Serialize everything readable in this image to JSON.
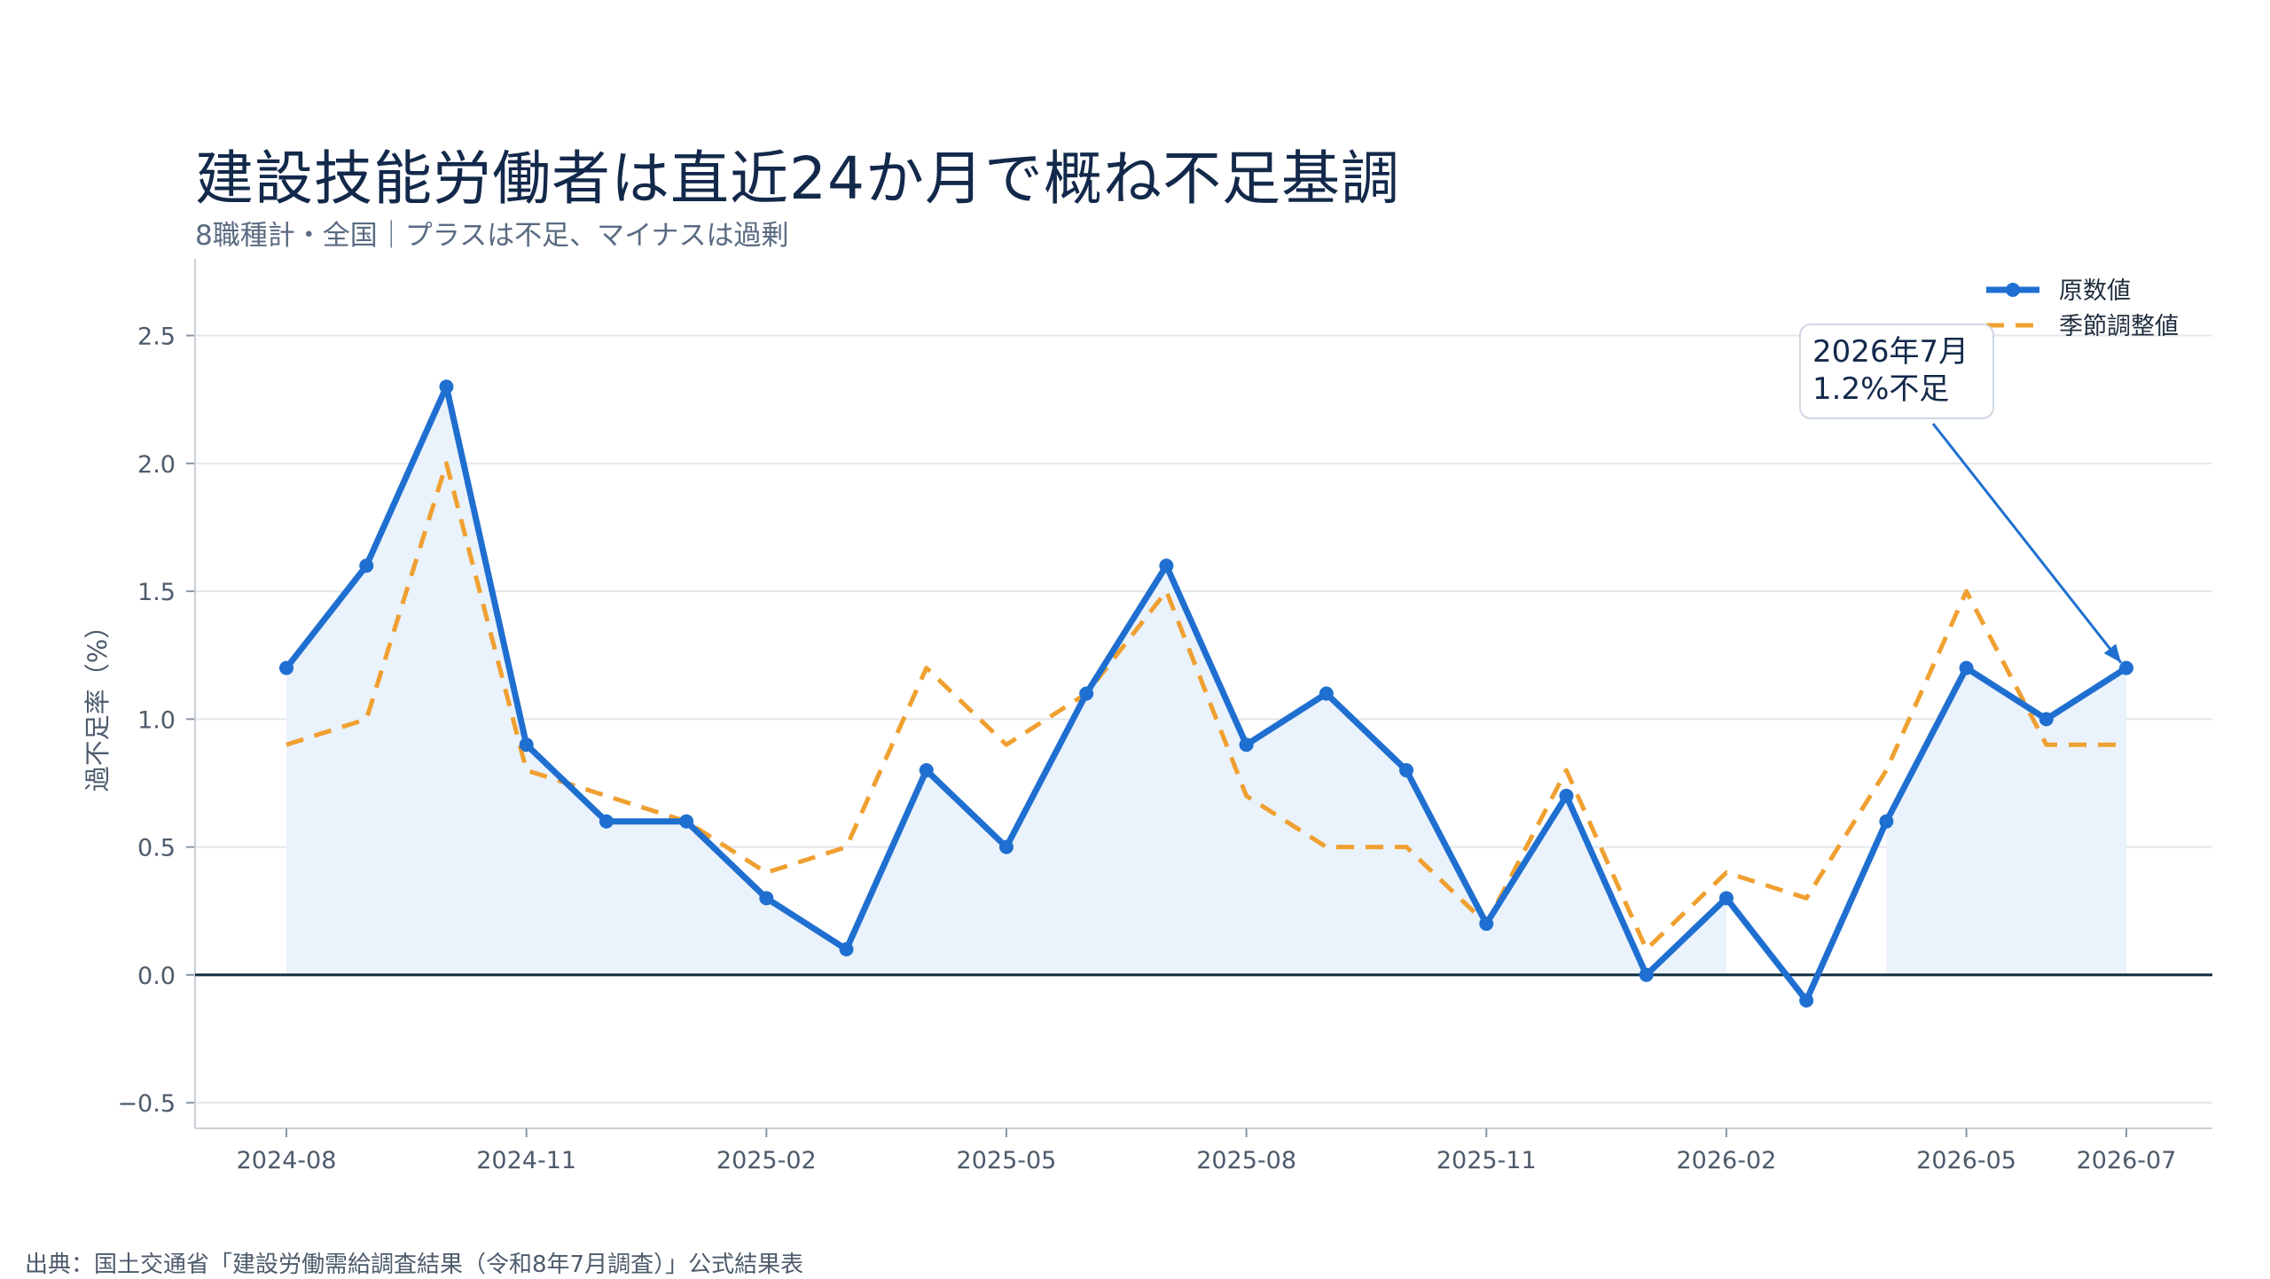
{
  "chart_data": {
    "type": "line",
    "title": "建設技能労働者は直近24か月で概ね不足基調",
    "subtitle": "8職種計・全国｜プラスは不足、マイナスは過剰",
    "ylabel": "過不足率（%）",
    "xlabel": "",
    "ylim": [
      -0.6,
      2.8
    ],
    "yticks": [
      -0.5,
      0.0,
      0.5,
      1.0,
      1.5,
      2.0,
      2.5
    ],
    "ytick_labels": [
      "−0.5",
      "0.0",
      "0.5",
      "1.0",
      "1.5",
      "2.0",
      "2.5"
    ],
    "x": [
      "2024-08",
      "2024-09",
      "2024-10",
      "2024-11",
      "2024-12",
      "2025-01",
      "2025-02",
      "2025-03",
      "2025-04",
      "2025-05",
      "2025-06",
      "2025-07",
      "2025-08",
      "2025-09",
      "2025-10",
      "2025-11",
      "2025-12",
      "2026-01",
      "2026-02",
      "2026-03",
      "2026-04",
      "2026-05",
      "2026-06",
      "2026-07"
    ],
    "xtick_labels": [
      "2024-08",
      "2024-11",
      "2025-02",
      "2025-05",
      "2025-08",
      "2025-11",
      "2026-02",
      "2026-05",
      "2026-07"
    ],
    "series": [
      {
        "name": "原数値",
        "color": "#1f6fd1",
        "style": "solid-markers",
        "values": [
          1.2,
          1.6,
          2.3,
          0.9,
          0.6,
          0.6,
          0.3,
          0.1,
          0.8,
          0.5,
          1.1,
          1.6,
          0.9,
          1.1,
          0.8,
          0.2,
          0.7,
          0.0,
          0.3,
          -0.1,
          0.6,
          1.2,
          1.0,
          1.2
        ]
      },
      {
        "name": "季節調整値",
        "color": "#f0a030",
        "style": "dashed",
        "values": [
          0.9,
          1.0,
          2.0,
          0.8,
          0.7,
          0.6,
          0.4,
          0.5,
          1.2,
          0.9,
          1.1,
          1.5,
          0.7,
          0.5,
          0.5,
          0.2,
          0.8,
          0.1,
          0.4,
          0.3,
          0.8,
          1.5,
          0.9,
          0.9
        ]
      }
    ],
    "fill_color": "#eaf2fb",
    "zero_line_color": "#0f2a3f",
    "grid": true,
    "legend_position": "top-right",
    "annotation": {
      "lines": [
        "2026年7月",
        "1.2%不足"
      ],
      "x": "2026-07",
      "y": 1.2
    }
  },
  "source": "出典：国土交通省「建設労働需給調査結果（令和8年7月調査）」公式結果表"
}
